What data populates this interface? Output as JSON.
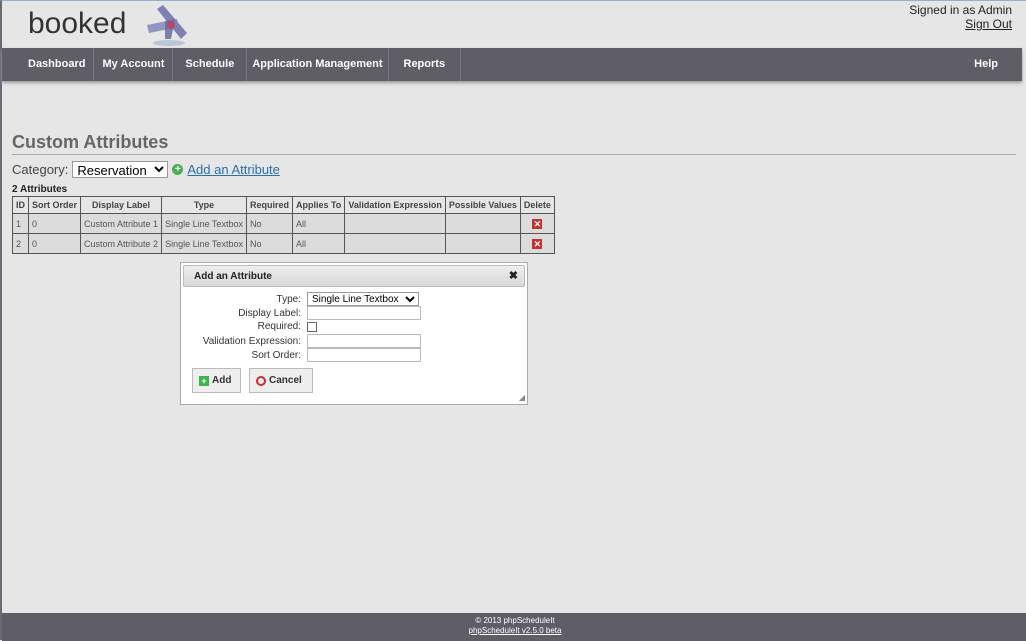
{
  "header": {
    "logo": "booked",
    "signed_in": "Signed in as Admin",
    "sign_out": "Sign Out"
  },
  "nav": [
    "Dashboard",
    "My Account",
    "Schedule",
    "Application Management",
    "Reports"
  ],
  "nav_help": "Help",
  "page": {
    "title": "Custom Attributes",
    "category_label": "Category:",
    "category_value": "Reservation",
    "add_link": "Add an Attribute",
    "count": "2 Attributes"
  },
  "table": {
    "headers": [
      "ID",
      "Sort Order",
      "Display Label",
      "Type",
      "Required",
      "Applies To",
      "Validation Expression",
      "Possible Values",
      "Delete"
    ],
    "rows": [
      [
        "1",
        "0",
        "Custom Attribute 1",
        "Single Line Textbox",
        "No",
        "All",
        "",
        ""
      ],
      [
        "2",
        "0",
        "Custom Attribute 2",
        "Single Line Textbox",
        "No",
        "All",
        "",
        ""
      ]
    ]
  },
  "dialog": {
    "title": "Add an Attribute",
    "type_label": "Type:",
    "type_value": "Single Line Textbox",
    "display_label": "Display Label:",
    "required_label": "Required:",
    "validation_label": "Validation Expression:",
    "sort_label": "Sort Order:",
    "add": "Add",
    "cancel": "Cancel"
  },
  "footer": {
    "copyright": "© 2013 phpScheduleIt",
    "version": "phpScheduleIt v2.5.0 beta"
  },
  "colors": {
    "nav": "#5f5d66",
    "link": "#2a6fb0",
    "delete": "#c9302c"
  }
}
